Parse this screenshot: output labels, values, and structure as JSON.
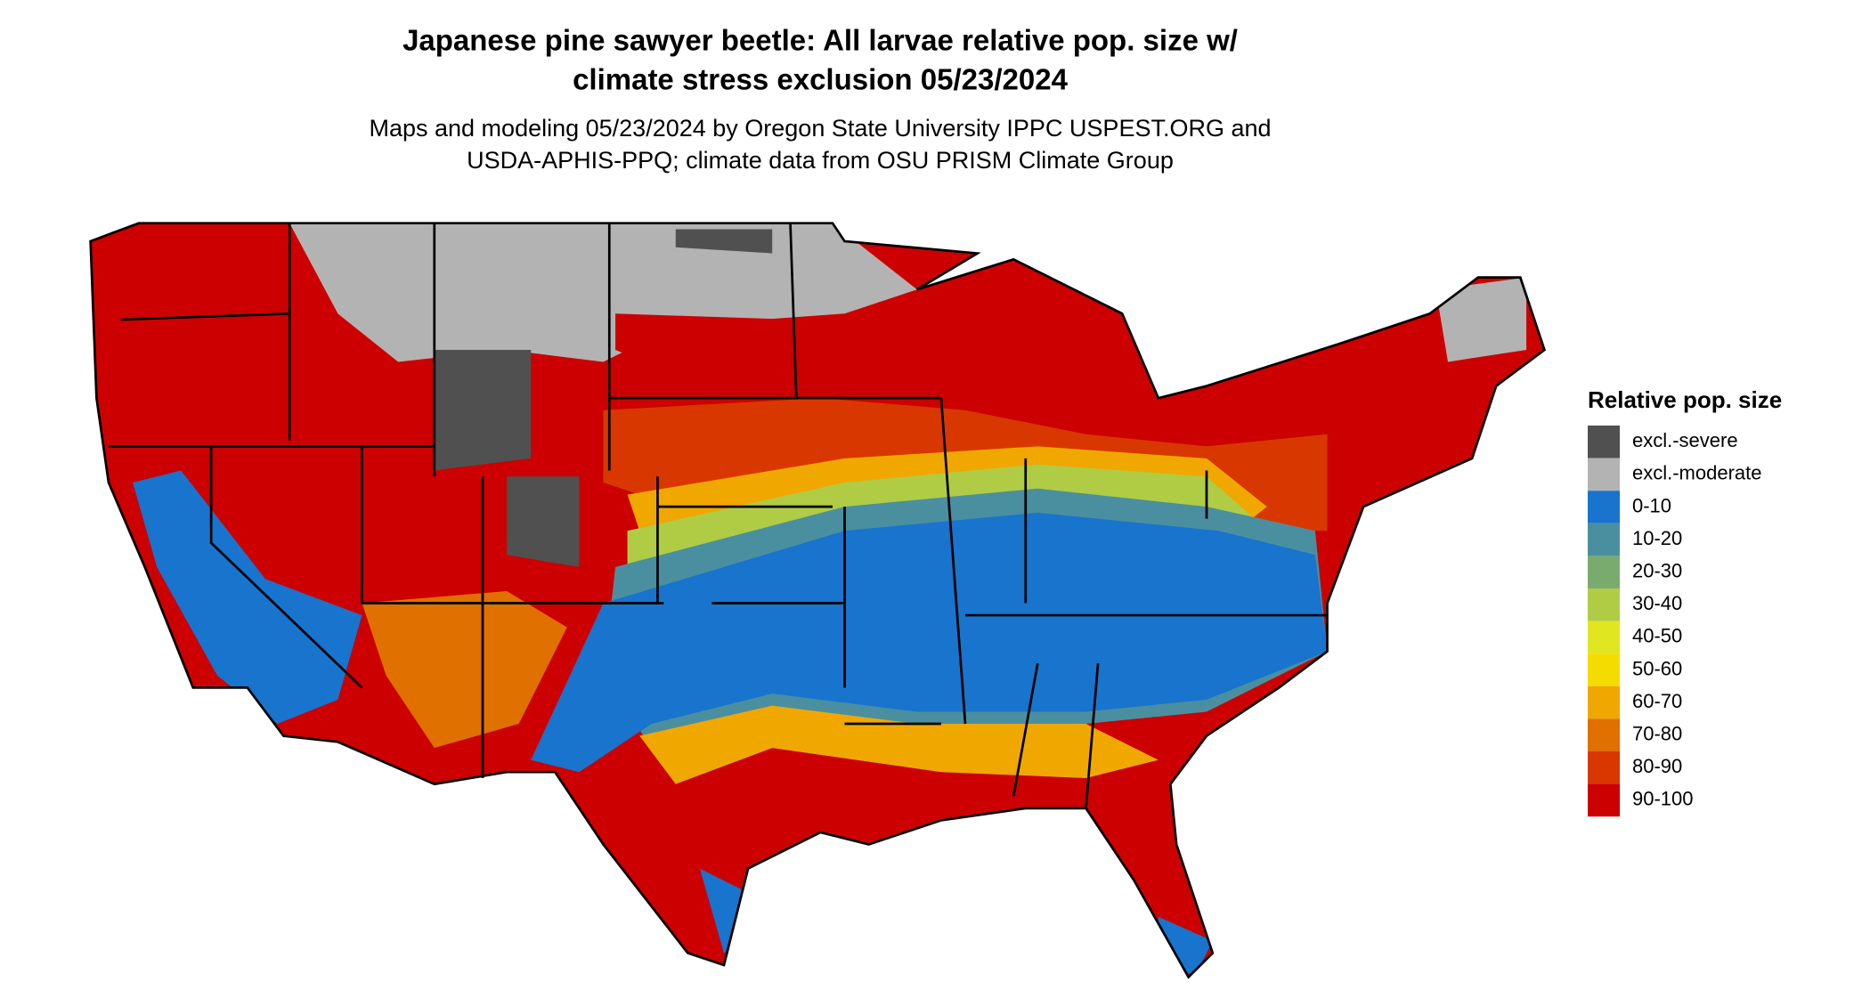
{
  "title": [
    "Japanese pine sawyer beetle: All larvae relative pop. size w/",
    "climate stress exclusion 05/23/2024"
  ],
  "subtitle": [
    "Maps and modeling 05/23/2024 by Oregon State University IPPC USPEST.ORG and",
    "USDA-APHIS-PPQ; climate data from OSU PRISM Climate Group"
  ],
  "legend": {
    "title": "Relative pop. size",
    "items": [
      {
        "label": "excl.-severe",
        "color": "#505050"
      },
      {
        "label": "excl.-moderate",
        "color": "#b3b3b3"
      },
      {
        "label": "0-10",
        "color": "#1874cd"
      },
      {
        "label": "10-20",
        "color": "#4a8fa0"
      },
      {
        "label": "20-30",
        "color": "#7aab6e"
      },
      {
        "label": "30-40",
        "color": "#b0cc45"
      },
      {
        "label": "40-50",
        "color": "#e0e620"
      },
      {
        "label": "50-60",
        "color": "#f5dc00"
      },
      {
        "label": "60-70",
        "color": "#f0a800"
      },
      {
        "label": "70-80",
        "color": "#e07000"
      },
      {
        "label": "80-90",
        "color": "#d83800"
      },
      {
        "label": "90-100",
        "color": "#cc0000"
      }
    ]
  }
}
